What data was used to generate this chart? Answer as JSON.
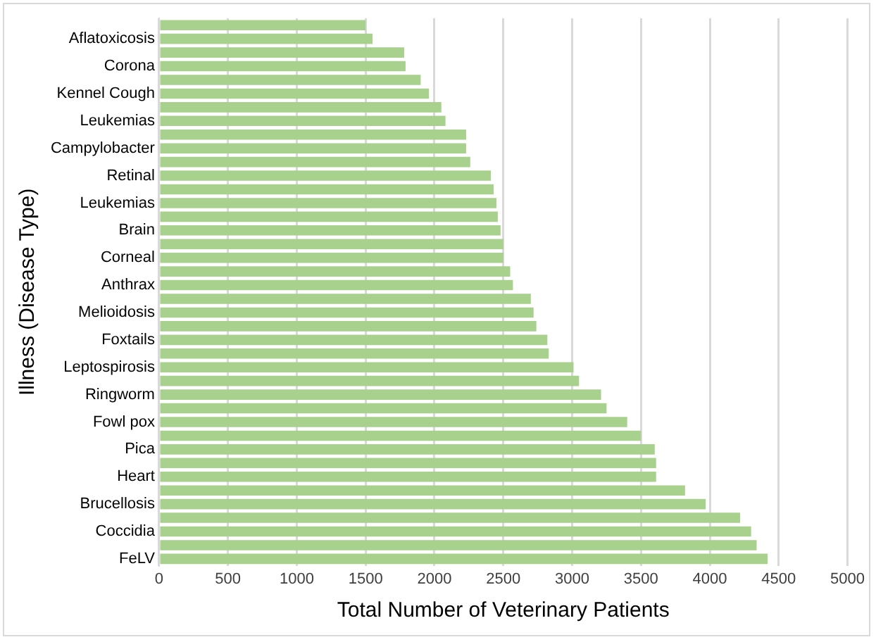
{
  "chart_data": {
    "type": "bar",
    "orientation": "horizontal",
    "xlabel": "Total Number of Veterinary Patients",
    "ylabel": "Illness (Disease Type)",
    "categories": [
      null,
      "Aflatoxicosis",
      null,
      "Corona",
      null,
      "Kennel Cough",
      null,
      "Leukemias",
      null,
      "Campylobacter",
      null,
      "Retinal",
      null,
      "Leukemias",
      null,
      "Brain",
      null,
      "Corneal",
      null,
      "Anthrax",
      null,
      "Melioidosis",
      null,
      "Foxtails",
      null,
      "Leptospirosis",
      null,
      "Ringworm",
      null,
      "Fowl pox",
      null,
      "Pica",
      null,
      "Heart",
      null,
      "Brucellosis",
      null,
      "Coccidia",
      null,
      "FeLV"
    ],
    "values": [
      1500,
      1550,
      1780,
      1790,
      1900,
      1960,
      2050,
      2080,
      2230,
      2230,
      2260,
      2410,
      2430,
      2450,
      2460,
      2480,
      2500,
      2500,
      2550,
      2570,
      2700,
      2720,
      2740,
      2820,
      2830,
      3010,
      3050,
      3210,
      3250,
      3400,
      3500,
      3600,
      3610,
      3610,
      3820,
      3970,
      4220,
      4300,
      4340,
      4420
    ],
    "color": "#a9d18e",
    "xlim": [
      0,
      5000
    ],
    "xticks": [
      0,
      500,
      1000,
      1500,
      2000,
      2500,
      3000,
      3500,
      4000,
      4500,
      5000
    ],
    "grid": "x",
    "legend": false
  }
}
